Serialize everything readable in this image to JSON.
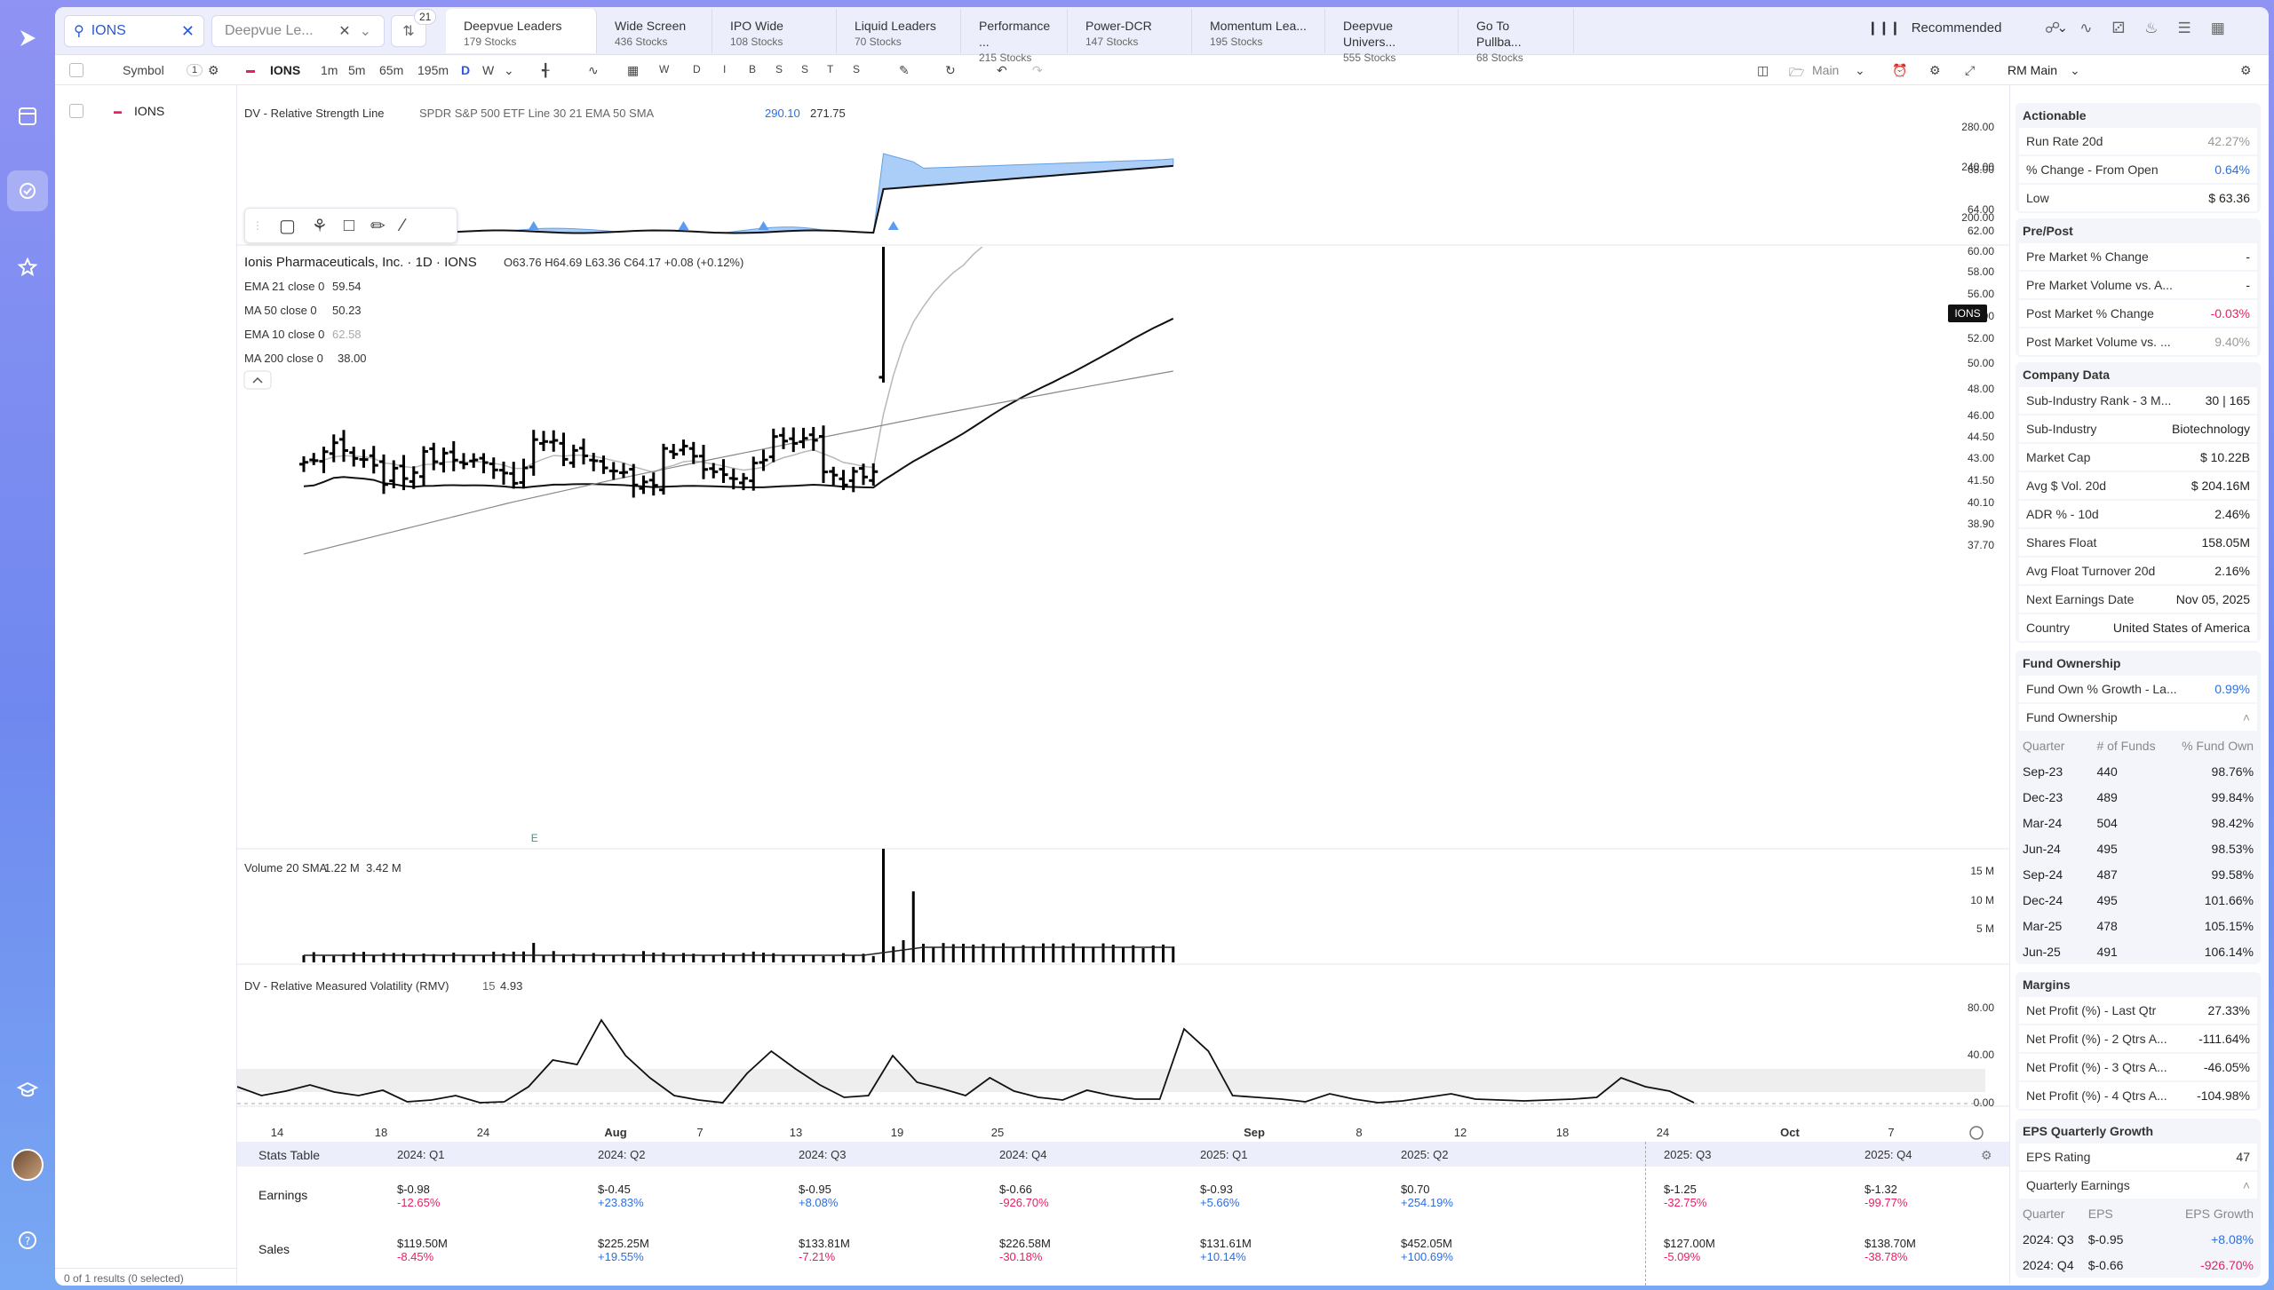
{
  "search": {
    "value": "IONS"
  },
  "watchlist": {
    "name": "Deepvue Le...",
    "count": "21"
  },
  "tabs": [
    {
      "label": "Deepvue Leaders",
      "sub": "179 Stocks"
    },
    {
      "label": "Wide Screen",
      "sub": "436 Stocks"
    },
    {
      "label": "IPO Wide",
      "sub": "108 Stocks"
    },
    {
      "label": "Liquid Leaders",
      "sub": "70 Stocks"
    },
    {
      "label": "Performance ...",
      "sub": "215 Stocks"
    },
    {
      "label": "Power-DCR",
      "sub": "147 Stocks"
    },
    {
      "label": "Momentum Lea...",
      "sub": "195 Stocks"
    },
    {
      "label": "Deepvue Univers...",
      "sub": "555 Stocks"
    },
    {
      "label": "Go To Pullba...",
      "sub": "68 Stocks"
    }
  ],
  "recommended": "Recommended",
  "toolbar": {
    "symbol": "Symbol",
    "count": "1",
    "ticker": "IONS",
    "tf": [
      "1m",
      "5m",
      "65m",
      "195m",
      "D",
      "W"
    ],
    "letters": [
      "W",
      "D",
      "I",
      "B",
      "S",
      "S",
      "T",
      "S"
    ],
    "layout": "Main"
  },
  "symbols": [
    {
      "ticker": "IONS"
    }
  ],
  "footer": "0 of 1 results (0 selected)",
  "rs": {
    "title": "DV - Relative Strength Line",
    "params": "SPDR S&P 500 ETF Line 30 21 EMA 50 SMA",
    "v1": "290.10",
    "v2": "271.75",
    "ticks": [
      "280.00",
      "240.00",
      "200.00"
    ]
  },
  "price": {
    "title": "Ionis Pharmaceuticals, Inc. · 1D · IONS",
    "ohlc": "O63.76  H64.69  L63.36  C64.17  +0.08 (+0.12%)",
    "tag": "IONS",
    "ind": [
      {
        "label": "EMA 21 close 0",
        "val": "59.54"
      },
      {
        "label": "MA 50 close 0",
        "val": "50.23"
      },
      {
        "label": "EMA 10 close 0",
        "val": "62.58"
      },
      {
        "label": "MA 200 close 0",
        "val": "38.00"
      }
    ],
    "ticks": [
      "68.00",
      "64.00",
      "62.00",
      "60.00",
      "58.00",
      "56.00",
      "54.00",
      "52.00",
      "50.00",
      "48.00",
      "46.00",
      "44.50",
      "43.00",
      "41.50",
      "40.10",
      "38.90",
      "37.70"
    ],
    "earn": "E"
  },
  "volume": {
    "title": "Volume 20 SMA",
    "v1": "1.22 M",
    "v2": "3.42 M",
    "ticks": [
      "15 M",
      "10 M",
      "5 M"
    ]
  },
  "rmv": {
    "title": "DV - Relative Measured Volatility (RMV)",
    "p": "15",
    "v": "4.93",
    "ticks": [
      "80.00",
      "40.00",
      "0.00"
    ]
  },
  "xaxis": [
    "14",
    "18",
    "24",
    "Aug",
    "7",
    "13",
    "19",
    "25",
    "Sep",
    "8",
    "12",
    "18",
    "24",
    "Oct",
    "7"
  ],
  "stats": {
    "title": "Stats Table",
    "quarters": [
      "2024: Q1",
      "2024: Q2",
      "2024: Q3",
      "2024: Q4",
      "2025: Q1",
      "2025: Q2",
      "2025: Q3",
      "2025: Q4"
    ],
    "earnings_label": "Earnings",
    "sales_label": "Sales",
    "earnings": [
      [
        "$-0.98",
        "-12.65%"
      ],
      [
        "$-0.45",
        "+23.83%"
      ],
      [
        "$-0.95",
        "+8.08%"
      ],
      [
        "$-0.66",
        "-926.70%"
      ],
      [
        "$-0.93",
        "+5.66%"
      ],
      [
        "$0.70",
        "+254.19%"
      ],
      [
        "$-1.25",
        "-32.75%"
      ],
      [
        "$-1.32",
        "-99.77%"
      ]
    ],
    "sales": [
      [
        "$119.50M",
        "-8.45%"
      ],
      [
        "$225.25M",
        "+19.55%"
      ],
      [
        "$133.81M",
        "-7.21%"
      ],
      [
        "$226.58M",
        "-30.18%"
      ],
      [
        "$131.61M",
        "+10.14%"
      ],
      [
        "$452.05M",
        "+100.69%"
      ],
      [
        "$127.00M",
        "-5.09%"
      ],
      [
        "$138.70M",
        "-38.78%"
      ]
    ]
  },
  "panel": {
    "title": "RM Main",
    "actionable": {
      "h": "Actionable",
      "rows": [
        [
          "Run Rate 20d",
          "42.27%",
          "mut"
        ],
        [
          "% Change - From Open",
          "0.64%",
          "pos"
        ],
        [
          "Low",
          "$ 63.36",
          "v"
        ]
      ]
    },
    "prepost": {
      "h": "Pre/Post",
      "rows": [
        [
          "Pre Market % Change",
          "-",
          "v"
        ],
        [
          "Pre Market Volume vs. A...",
          "-",
          "v"
        ],
        [
          "Post Market % Change",
          "-0.03%",
          "neg"
        ],
        [
          "Post Market Volume vs. ...",
          "9.40%",
          "mut"
        ]
      ]
    },
    "company": {
      "h": "Company Data",
      "rows": [
        [
          "Sub-Industry Rank - 3 M...",
          "30 | 165",
          ""
        ],
        [
          "Sub-Industry",
          "Biotechnology",
          ""
        ],
        [
          "Market Cap",
          "$ 10.22B",
          ""
        ],
        [
          "Avg $ Vol. 20d",
          "$ 204.16M",
          ""
        ],
        [
          "ADR % - 10d",
          "2.46%",
          ""
        ],
        [
          "Shares Float",
          "158.05M",
          ""
        ],
        [
          "Avg Float Turnover 20d",
          "2.16%",
          ""
        ],
        [
          "Next Earnings Date",
          "Nov 05, 2025",
          ""
        ],
        [
          "Country",
          "United States of America",
          ""
        ]
      ]
    },
    "fund": {
      "h": "Fund Ownership",
      "growth": [
        "Fund Own % Growth - La...",
        "0.99%"
      ],
      "sub": "Fund Ownership",
      "cols": [
        "Quarter",
        "# of Funds",
        "% Fund Own"
      ],
      "rows": [
        [
          "Sep-23",
          "440",
          "98.76%"
        ],
        [
          "Dec-23",
          "489",
          "99.84%"
        ],
        [
          "Mar-24",
          "504",
          "98.42%"
        ],
        [
          "Jun-24",
          "495",
          "98.53%"
        ],
        [
          "Sep-24",
          "487",
          "99.58%"
        ],
        [
          "Dec-24",
          "495",
          "101.66%"
        ],
        [
          "Mar-25",
          "478",
          "105.15%"
        ],
        [
          "Jun-25",
          "491",
          "106.14%"
        ]
      ]
    },
    "margins": {
      "h": "Margins",
      "rows": [
        [
          "Net Profit (%) - Last Qtr",
          "27.33%"
        ],
        [
          "Net Profit (%) - 2 Qtrs A...",
          "-111.64%"
        ],
        [
          "Net Profit (%) - 3 Qtrs A...",
          "-46.05%"
        ],
        [
          "Net Profit (%) - 4 Qtrs A...",
          "-104.98%"
        ]
      ]
    },
    "eps": {
      "h": "EPS Quarterly Growth",
      "rating": [
        "EPS Rating",
        "47"
      ],
      "sub": "Quarterly Earnings",
      "cols": [
        "Quarter",
        "EPS",
        "EPS Growth"
      ],
      "rows": [
        [
          "2024: Q3",
          "$-0.95",
          "+8.08%"
        ],
        [
          "2024: Q4",
          "$-0.66",
          "-926.70%"
        ]
      ]
    }
  }
}
